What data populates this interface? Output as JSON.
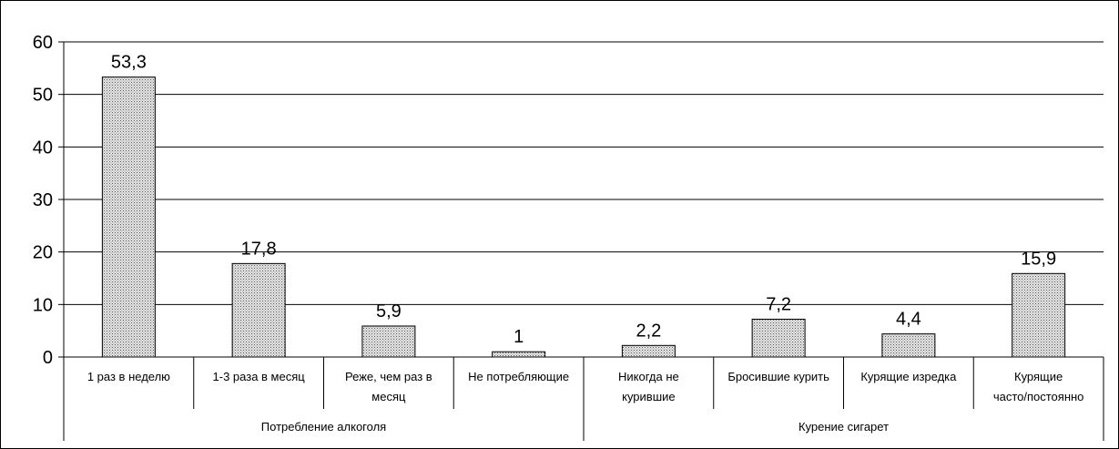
{
  "chart_data": {
    "type": "bar",
    "title": "",
    "xlabel": "",
    "ylabel": "",
    "ylim": [
      0,
      60
    ],
    "yticks": [
      0,
      10,
      20,
      30,
      40,
      50,
      60
    ],
    "grid": true,
    "bar_pattern": "dotted-gray",
    "categories": [
      "1 раз в неделю",
      "1-3 раза в месяц",
      "Реже, чем раз в месяц",
      "Не потребляющие",
      "Никогда не курившие",
      "Бросившие курить",
      "Курящие изредка",
      "Курящие часто/постоянно"
    ],
    "category_lines": [
      [
        "1 раз в неделю"
      ],
      [
        "1-3 раза в месяц"
      ],
      [
        "Реже, чем раз в",
        "месяц"
      ],
      [
        "Не потребляющие"
      ],
      [
        "Никогда не",
        "курившие"
      ],
      [
        "Бросившие курить"
      ],
      [
        "Курящие изредка"
      ],
      [
        "Курящие",
        "часто/постоянно"
      ]
    ],
    "values": [
      53.3,
      17.8,
      5.9,
      1,
      2.2,
      7.2,
      4.4,
      15.9
    ],
    "data_labels": [
      "53,3",
      "17,8",
      "5,9",
      "1",
      "2,2",
      "7,2",
      "4,4",
      "15,9"
    ],
    "groups": [
      {
        "label": "Потребление алкоголя",
        "start": 0,
        "end": 3
      },
      {
        "label": "Курение сигарет",
        "start": 4,
        "end": 7
      }
    ]
  }
}
